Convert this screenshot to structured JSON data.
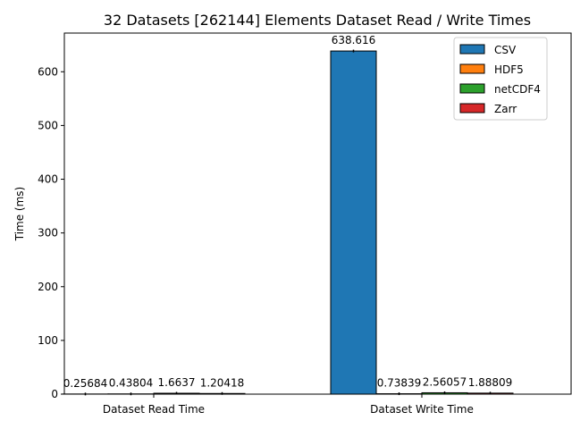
{
  "chart_data": {
    "type": "bar",
    "title": "32 Datasets [262144] Elements Dataset Read / Write Times",
    "xlabel": "",
    "ylabel": "Time (ms)",
    "ylim": [
      0,
      672
    ],
    "yticks": [
      0,
      100,
      200,
      300,
      400,
      500,
      600
    ],
    "grid": false,
    "legend_placement": "top-right",
    "categories": [
      "Dataset Read Time",
      "Dataset Write Time"
    ],
    "series": [
      {
        "name": "CSV",
        "color": "#1f77b4",
        "values": [
          0.25684,
          638.616
        ],
        "labels": [
          "0.25684",
          "638.616"
        ]
      },
      {
        "name": "HDF5",
        "color": "#ff7f0e",
        "values": [
          0.43804,
          0.73839
        ],
        "labels": [
          "0.43804",
          "0.73839"
        ]
      },
      {
        "name": "netCDF4",
        "color": "#2ca02c",
        "values": [
          1.6637,
          2.56057
        ],
        "labels": [
          "1.6637",
          "2.56057"
        ]
      },
      {
        "name": "Zarr",
        "color": "#d62728",
        "values": [
          1.20418,
          1.88809
        ],
        "labels": [
          "1.20418",
          "1.88809"
        ]
      }
    ]
  }
}
